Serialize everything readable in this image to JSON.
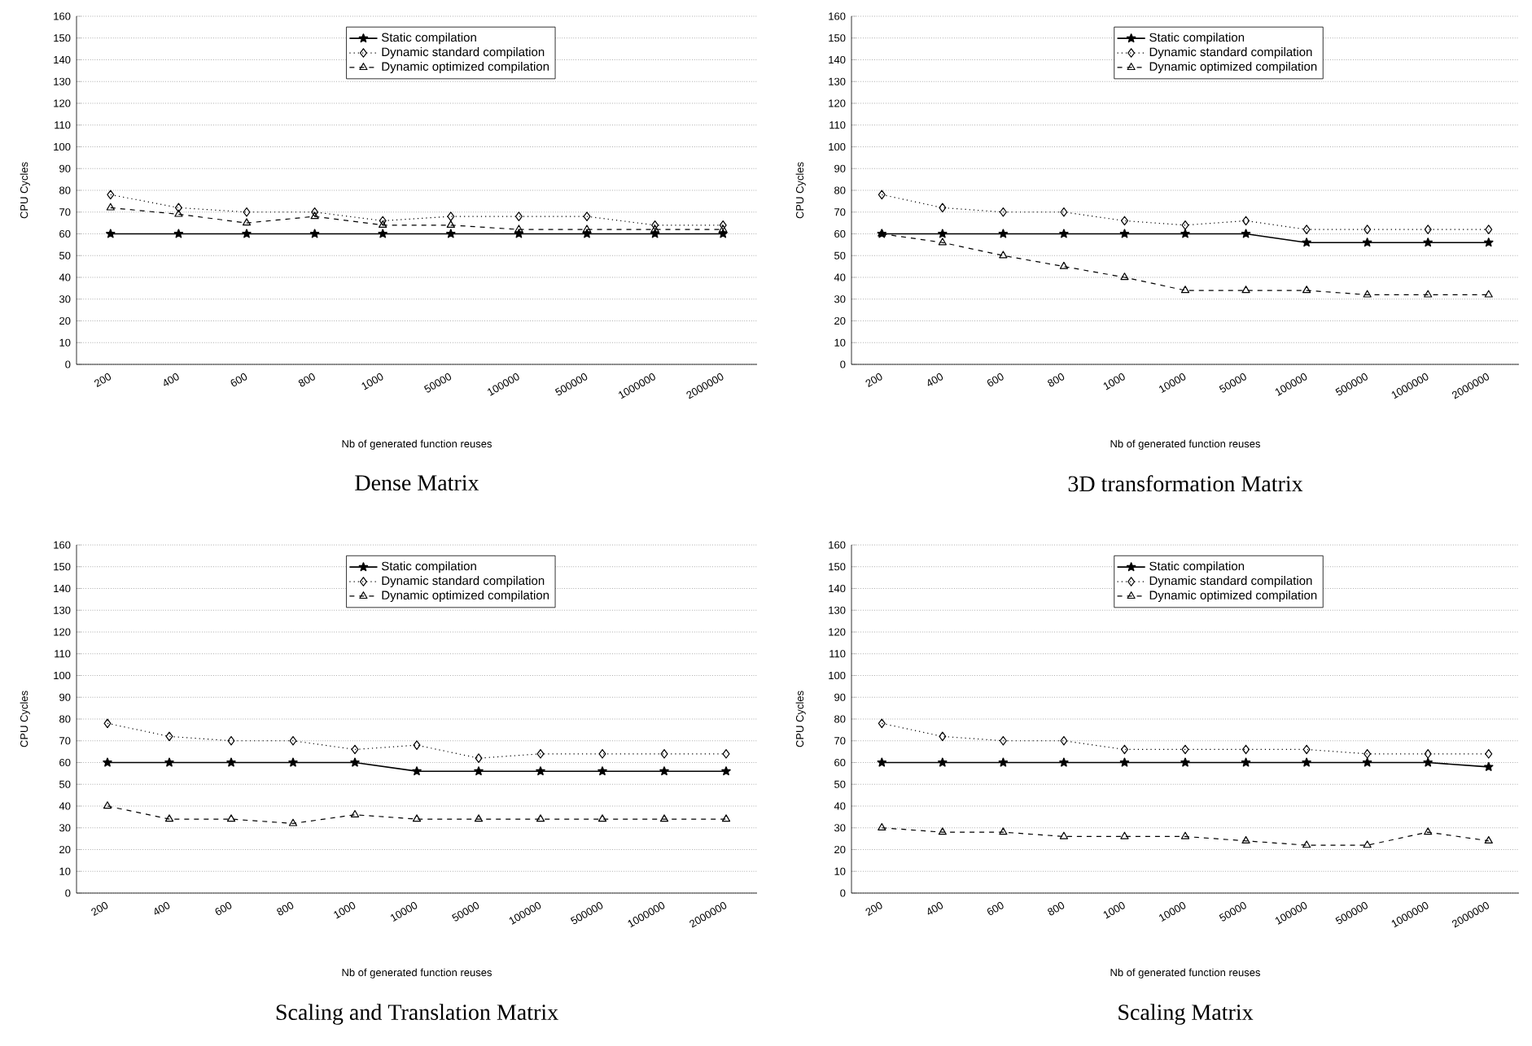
{
  "chart_data": [
    {
      "type": "line",
      "title": "Dense Matrix",
      "xlabel": "Nb of generated function reuses",
      "ylabel": "CPU Cycles",
      "categories": [
        "200",
        "400",
        "600",
        "800",
        "1000",
        "50000",
        "100000",
        "500000",
        "1000000",
        "2000000"
      ],
      "series": [
        {
          "name": "Static compilation",
          "color": "#000000",
          "marker": "star",
          "line_style": "solid",
          "values": [
            60,
            60,
            60,
            60,
            60,
            60,
            60,
            60,
            60,
            60
          ]
        },
        {
          "name": "Dynamic standard compilation",
          "color": "#000000",
          "marker": "diamond",
          "line_style": "dotted",
          "values": [
            78,
            72,
            70,
            70,
            66,
            68,
            68,
            68,
            64,
            64
          ]
        },
        {
          "name": "Dynamic optimized compilation",
          "color": "#000000",
          "marker": "triangle",
          "line_style": "dashed",
          "values": [
            72,
            69,
            65,
            68,
            64,
            64,
            62,
            62,
            62,
            62
          ]
        }
      ],
      "ylim": [
        0,
        160
      ],
      "yticks": [
        0,
        10,
        20,
        30,
        40,
        50,
        60,
        70,
        80,
        90,
        100,
        110,
        120,
        130,
        140,
        150,
        160
      ],
      "grid": "y",
      "legend": "top"
    },
    {
      "type": "line",
      "title": "3D transformation Matrix",
      "xlabel": "Nb of generated function reuses",
      "ylabel": "CPU Cycles",
      "categories": [
        "200",
        "400",
        "600",
        "800",
        "1000",
        "10000",
        "50000",
        "100000",
        "500000",
        "1000000",
        "2000000"
      ],
      "series": [
        {
          "name": "Static compilation",
          "color": "#000000",
          "marker": "star",
          "line_style": "solid",
          "values": [
            60,
            60,
            60,
            60,
            60,
            60,
            60,
            56,
            56,
            56,
            56
          ]
        },
        {
          "name": "Dynamic standard compilation",
          "color": "#000000",
          "marker": "diamond",
          "line_style": "dotted",
          "values": [
            78,
            72,
            70,
            70,
            66,
            64,
            66,
            62,
            62,
            62,
            62
          ]
        },
        {
          "name": "Dynamic optimized compilation",
          "color": "#000000",
          "marker": "triangle",
          "line_style": "dashed",
          "values": [
            60,
            56,
            50,
            45,
            40,
            34,
            34,
            34,
            32,
            32,
            32
          ]
        }
      ],
      "ylim": [
        0,
        160
      ],
      "yticks": [
        0,
        10,
        20,
        30,
        40,
        50,
        60,
        70,
        80,
        90,
        100,
        110,
        120,
        130,
        140,
        150,
        160
      ],
      "grid": "y",
      "legend": "top"
    },
    {
      "type": "line",
      "title": "Scaling and Translation Matrix",
      "xlabel": "Nb of generated function reuses",
      "ylabel": "CPU Cycles",
      "categories": [
        "200",
        "400",
        "600",
        "800",
        "1000",
        "10000",
        "50000",
        "100000",
        "500000",
        "1000000",
        "2000000"
      ],
      "series": [
        {
          "name": "Static compilation",
          "color": "#000000",
          "marker": "star",
          "line_style": "solid",
          "values": [
            60,
            60,
            60,
            60,
            60,
            56,
            56,
            56,
            56,
            56,
            56
          ]
        },
        {
          "name": "Dynamic standard compilation",
          "color": "#000000",
          "marker": "diamond",
          "line_style": "dotted",
          "values": [
            78,
            72,
            70,
            70,
            66,
            68,
            62,
            64,
            64,
            64,
            64
          ]
        },
        {
          "name": "Dynamic optimized compilation",
          "color": "#000000",
          "marker": "triangle",
          "line_style": "dashed",
          "values": [
            40,
            34,
            34,
            32,
            36,
            34,
            34,
            34,
            34,
            34,
            34
          ]
        }
      ],
      "ylim": [
        0,
        160
      ],
      "yticks": [
        0,
        10,
        20,
        30,
        40,
        50,
        60,
        70,
        80,
        90,
        100,
        110,
        120,
        130,
        140,
        150,
        160
      ],
      "grid": "y",
      "legend": "top"
    },
    {
      "type": "line",
      "title": "Scaling Matrix",
      "xlabel": "Nb of generated function reuses",
      "ylabel": "CPU Cycles",
      "categories": [
        "200",
        "400",
        "600",
        "800",
        "1000",
        "10000",
        "50000",
        "100000",
        "500000",
        "1000000",
        "2000000"
      ],
      "series": [
        {
          "name": "Static compilation",
          "color": "#000000",
          "marker": "star",
          "line_style": "solid",
          "values": [
            60,
            60,
            60,
            60,
            60,
            60,
            60,
            60,
            60,
            60,
            58
          ]
        },
        {
          "name": "Dynamic standard compilation",
          "color": "#000000",
          "marker": "diamond",
          "line_style": "dotted",
          "values": [
            78,
            72,
            70,
            70,
            66,
            66,
            66,
            66,
            64,
            64,
            64
          ]
        },
        {
          "name": "Dynamic optimized compilation",
          "color": "#000000",
          "marker": "triangle",
          "line_style": "dashed",
          "values": [
            30,
            28,
            28,
            26,
            26,
            26,
            24,
            22,
            22,
            28,
            24
          ]
        }
      ],
      "ylim": [
        0,
        160
      ],
      "yticks": [
        0,
        10,
        20,
        30,
        40,
        50,
        60,
        70,
        80,
        90,
        100,
        110,
        120,
        130,
        140,
        150,
        160
      ],
      "grid": "y",
      "legend": "top"
    }
  ]
}
